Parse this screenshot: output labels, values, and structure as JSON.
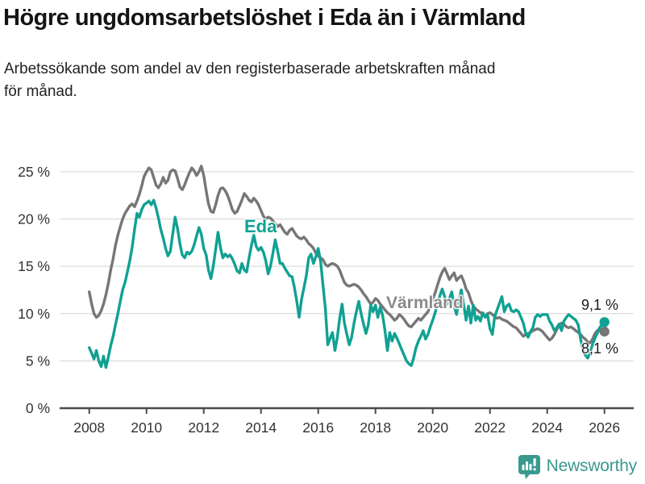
{
  "header": {
    "title": "Högre ungdomsarbetslöshet i Eda än i Värmland",
    "subtitle_lines": [
      "Arbetssökande som andel av den registerbaserade arbetskraften månad",
      "för månad."
    ]
  },
  "logo": {
    "text": "Newsworthy",
    "icon": "newsworthy-bar-chart-bubble-icon",
    "color": "#3a998f"
  },
  "chart_data": {
    "type": "line",
    "title": "Högre ungdomsarbetslöshet i Eda än i Värmland",
    "xlabel": "",
    "ylabel": "",
    "grid": "horizontal",
    "legend_position": "inline-labels",
    "ylim": [
      0,
      27
    ],
    "x_range": {
      "start": "2008-01",
      "end": "2026-01",
      "step": "month"
    },
    "x_ticks": {
      "values": [
        2008,
        2010,
        2012,
        2014,
        2016,
        2018,
        2020,
        2022,
        2024,
        2026
      ],
      "labels": [
        "2008",
        "2010",
        "2012",
        "2014",
        "2016",
        "2018",
        "2020",
        "2022",
        "2024",
        "2026"
      ]
    },
    "y_ticks": {
      "values": [
        0,
        5,
        10,
        15,
        20,
        25
      ],
      "labels": [
        "0 %",
        "5 %",
        "10 %",
        "15 %",
        "20 %",
        "25 %"
      ]
    },
    "colors": {
      "grid": "#dcdcdc",
      "axis": "#4a4a4a",
      "tick_text": "#333333"
    },
    "series": [
      {
        "name": "Värmland",
        "color": "#767676",
        "end_label": "8,1 %",
        "end_value": 8.1,
        "values": [
          12.3,
          11,
          10,
          9.6,
          9.8,
          10.3,
          11,
          12,
          13.2,
          14.6,
          15.8,
          17.2,
          18.3,
          19.2,
          20,
          20.6,
          21,
          21.4,
          21.6,
          21.3,
          21.9,
          22.6,
          23.5,
          24.5,
          25,
          25.4,
          25.2,
          24.4,
          23.6,
          23.3,
          23.7,
          24.4,
          23.8,
          24.1,
          25,
          25.2,
          25.1,
          24.3,
          23.4,
          23.1,
          23.6,
          24.3,
          24.9,
          25.4,
          25.1,
          24.6,
          25,
          25.6,
          24.6,
          23,
          21.6,
          20.8,
          20.7,
          21.5,
          22.5,
          23.2,
          23.3,
          23,
          22.5,
          21.8,
          21,
          20.6,
          20.8,
          21.4,
          22,
          22.7,
          22.4,
          22,
          21.8,
          22.2,
          21.9,
          21.5,
          20.9,
          20.3,
          20,
          20.2,
          20.1,
          19.8,
          19.5,
          19.2,
          19.4,
          19,
          18.6,
          18.4,
          18.8,
          19,
          18.6,
          18.2,
          18,
          17.9,
          18.1,
          17.8,
          17.4,
          17.2,
          16.9,
          16.4,
          16.1,
          15.9,
          15.7,
          15.2,
          15,
          15.2,
          15.3,
          15.2,
          15,
          14.6,
          13.9,
          13.3,
          13,
          12.9,
          13,
          13.1,
          13,
          12.8,
          12.5,
          12.1,
          11.8,
          11.4,
          11,
          11.2,
          11.6,
          11.4,
          11,
          10.7,
          10.4,
          10.1,
          9.9,
          9.6,
          9.3,
          9.5,
          9.9,
          9.7,
          9.4,
          9,
          8.7,
          8.6,
          8.9,
          9.2,
          9.5,
          9.3,
          9.6,
          9.9,
          10.2,
          10.8,
          11.5,
          12.2,
          13,
          13.8,
          14.4,
          14.8,
          14.2,
          13.6,
          14,
          14.3,
          13.5,
          13.8,
          14,
          13.4,
          12.6,
          12.2,
          11.4,
          10.8,
          10.5,
          10.3,
          10.1,
          9.9,
          9.7,
          10,
          10.1,
          9.9,
          9.7,
          9.5,
          9.6,
          9.4,
          9.3,
          9.2,
          9,
          8.8,
          8.6,
          8.5,
          8.2,
          7.9,
          7.6,
          7.8,
          7.9,
          8,
          8.2,
          8.3,
          8.4,
          8.3,
          8.1,
          7.8,
          7.5,
          7.2,
          7.4,
          7.8,
          8.3,
          8.8,
          9,
          8.9,
          8.6,
          8.5,
          8.6,
          8.4,
          8.2,
          8,
          7.8,
          7.5,
          7.3,
          7,
          6.9,
          7.3,
          7.9,
          8.2,
          8.4,
          8,
          8.1
        ]
      },
      {
        "name": "Eda",
        "color": "#10a193",
        "end_label": "9,1 %",
        "end_value": 9.1,
        "values": [
          6.4,
          5.8,
          5.2,
          6.1,
          5,
          4.4,
          5.5,
          4.3,
          5.4,
          6.6,
          7.6,
          8.8,
          10,
          11.3,
          12.5,
          13.3,
          14.4,
          15.6,
          17,
          18.9,
          20.6,
          20.2,
          21,
          21.5,
          21.7,
          21.9,
          21.5,
          22,
          21.2,
          20.1,
          18.9,
          18,
          16.9,
          16.1,
          16.6,
          18.4,
          20.2,
          19,
          17.4,
          16.2,
          15.9,
          16.5,
          16.3,
          16.6,
          17.3,
          18.2,
          19.1,
          18.4,
          16.9,
          16.2,
          14.6,
          13.7,
          15,
          16.8,
          18.6,
          17,
          15.9,
          16.3,
          16,
          16.2,
          15.8,
          15.2,
          14.5,
          14.3,
          15.3,
          14.6,
          14.4,
          15.9,
          17.2,
          18.3,
          17.1,
          16.7,
          17,
          16.5,
          15.6,
          14.2,
          15,
          16.4,
          17.8,
          16.6,
          15.3,
          15.3,
          14.8,
          14.4,
          14,
          13.9,
          12.8,
          11.3,
          9.6,
          11.5,
          12.7,
          14,
          15.9,
          16.3,
          15.3,
          16,
          16.9,
          15.5,
          13,
          10.5,
          6.7,
          7.4,
          8,
          6.1,
          7.5,
          9.5,
          11,
          9,
          7.8,
          6.7,
          7.5,
          9,
          10.2,
          11.3,
          10,
          8.9,
          7.9,
          8.8,
          10.9,
          10.2,
          10.9,
          9.6,
          10.7,
          9.8,
          8.2,
          6.1,
          8,
          7.1,
          7.9,
          7.4,
          6.8,
          6.2,
          5.6,
          5,
          4.7,
          4.5,
          5.3,
          6.4,
          7.1,
          7.6,
          8.2,
          7.3,
          7.8,
          8.6,
          9.3,
          10.1,
          11,
          11.9,
          12.6,
          11.8,
          11,
          11.6,
          12.3,
          10.8,
          9.9,
          11.4,
          12.5,
          10.9,
          9.3,
          10.8,
          9,
          10.9,
          9.3,
          9.7,
          9.2,
          10.1,
          9.6,
          9.9,
          8.4,
          7.8,
          9.7,
          10.4,
          11.1,
          11.8,
          10.2,
          10.8,
          11,
          10.3,
          10.2,
          10.4,
          10.2,
          9.6,
          9,
          7.9,
          7.5,
          8.1,
          8.5,
          9.6,
          9.9,
          9.7,
          9.9,
          9.9,
          9.9,
          9.2,
          8.8,
          8.2,
          8.5,
          8.9,
          8.2,
          9.2,
          9.6,
          9.9,
          9.7,
          9.5,
          9.3,
          8.8,
          7.3,
          6.2,
          5.6,
          5.3,
          6,
          6.7,
          7.4,
          7.9,
          8.5,
          8.9,
          9.1
        ]
      }
    ]
  }
}
